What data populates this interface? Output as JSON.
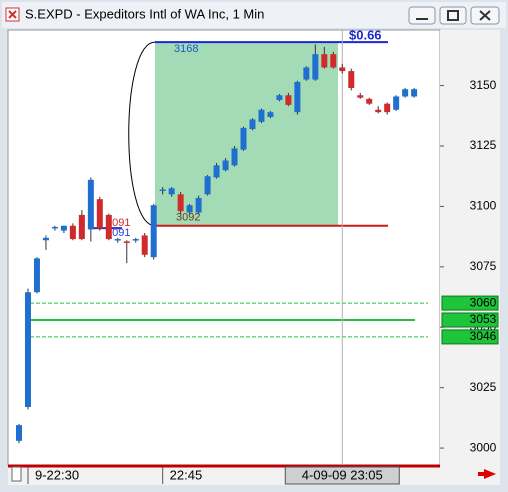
{
  "chart_data": {
    "type": "candlestick",
    "title": "S.EXPD - Expeditors Intl of WA Inc, 1 Min",
    "categories": [
      null,
      "9-22:30",
      null,
      null,
      null,
      null,
      null,
      null,
      null,
      null,
      null,
      null,
      null,
      null,
      null,
      null,
      "22:45",
      null,
      null,
      null,
      null,
      null,
      null,
      null,
      null,
      null,
      null,
      null,
      null,
      null,
      null,
      null,
      null,
      null,
      null,
      null,
      "4-09-09 23:05",
      null,
      null,
      null,
      null,
      null,
      null,
      null,
      null
    ],
    "open": [
      3003,
      3017,
      3064.5,
      3086,
      3091,
      3090,
      3092,
      3096.5,
      3090.5,
      3103,
      3096.5,
      3086,
      3085.5,
      3086,
      3088,
      3079,
      3106.5,
      3105,
      3105,
      3097.5,
      3097.5,
      3105,
      3112,
      3115,
      3117,
      3123.5,
      3132,
      3135,
      3137,
      3144,
      3146,
      3139,
      3152.5,
      3152.5,
      3163,
      3163,
      3157.5,
      3156,
      3146,
      3144.5,
      3140,
      3142.5,
      3140,
      3145.5,
      3145.5
    ],
    "high": [
      3010,
      3066,
      3079,
      3088,
      3092,
      3092,
      3093,
      3098.5,
      3112,
      3104,
      3097,
      3087,
      3086,
      3087,
      3089,
      3101,
      3108,
      3108,
      3106,
      3101,
      3104.5,
      3113,
      3118,
      3120,
      3125,
      3133,
      3136.5,
      3140.5,
      3139.5,
      3146.5,
      3147,
      3152,
      3158,
      3167,
      3166,
      3164,
      3159,
      3157,
      3147,
      3145,
      3141.5,
      3143,
      3146,
      3149,
      3149
    ],
    "low": [
      3002,
      3016,
      3064,
      3082,
      3090,
      3089,
      3086,
      3086,
      3085.5,
      3090,
      3086,
      3085,
      3076.5,
      3085,
      3079,
      3078,
      3105,
      3104,
      3097,
      3097,
      3097,
      3104.5,
      3111.5,
      3114.5,
      3116.5,
      3123,
      3131.5,
      3134.5,
      3136.5,
      3143.5,
      3141.5,
      3138,
      3152,
      3152,
      3157,
      3157,
      3155,
      3148,
      3144.5,
      3142,
      3138.5,
      3138,
      3139.5,
      3145,
      3145
    ],
    "close": [
      3009.5,
      3064.5,
      3078.5,
      3087,
      3091.5,
      3092,
      3086.5,
      3086.5,
      3111,
      3091,
      3086.5,
      3086.5,
      3085,
      3086.5,
      3080,
      3100.5,
      3107,
      3107.5,
      3098,
      3100.5,
      3103.5,
      3112.5,
      3117,
      3119,
      3124,
      3132.5,
      3136,
      3140,
      3139,
      3146,
      3142,
      3151.5,
      3157.5,
      3163,
      3157.5,
      3157.5,
      3156,
      3149,
      3145,
      3142.5,
      3139,
      3139,
      3145.5,
      3148.5,
      3148.5
    ],
    "up_color": "#1f6fd0",
    "down_color": "#d02a2a",
    "ylim": [
      2993,
      3173
    ],
    "yticks": [
      3000,
      3025,
      3050,
      3075,
      3100,
      3125,
      3150
    ],
    "levels": [
      {
        "value": 3060,
        "style": "dashed",
        "color": "#22c33a"
      },
      {
        "value": 3053,
        "style": "solid",
        "color": "#22c33a"
      },
      {
        "value": 3046,
        "style": "dashed",
        "color": "#22c33a"
      }
    ],
    "range_box": {
      "high": 3168,
      "low": 3092,
      "gain_label": "$0.66",
      "fill": "#9ed9b3"
    },
    "markers": [
      {
        "value": 3091,
        "color": "#d02a2a"
      },
      {
        "value": 3091,
        "color": "#2a3fd0"
      }
    ]
  }
}
